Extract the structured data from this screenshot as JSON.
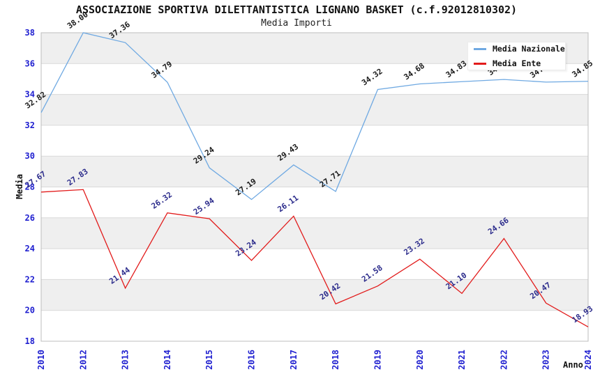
{
  "chart_data": {
    "type": "line",
    "title": "ASSOCIAZIONE SPORTIVA DILETTANTISTICA LIGNANO BASKET (c.f.92012810302)",
    "subtitle": "Media Importi",
    "xlabel": "Anno",
    "ylabel": "Media",
    "ylim": [
      18,
      38
    ],
    "ytick_step": 2,
    "grid": "horizontal-bands-alternating",
    "band_color": "#efefef",
    "gridline_color": "#d9d9d9",
    "plot_border_color": "#bdbdbd",
    "axis_tick_color": "#2020d0",
    "legend_position": "top-right",
    "categories": [
      "2010",
      "2012",
      "2013",
      "2014",
      "2015",
      "2016",
      "2017",
      "2018",
      "2019",
      "2020",
      "2021",
      "2022",
      "2023",
      "2024"
    ],
    "series": [
      {
        "name": "Media Nazionale",
        "color": "#6FA9E2",
        "label_color": "#1a1a1a",
        "values": [
          32.82,
          38.0,
          37.36,
          34.79,
          29.24,
          27.19,
          29.43,
          27.71,
          34.32,
          34.68,
          34.83,
          34.97,
          34.8,
          34.85
        ],
        "labels": [
          "32.82",
          "38.00",
          "37.36",
          "34.79",
          "29.24",
          "27.19",
          "29.43",
          "27.71",
          "34.32",
          "34.68",
          "34.83",
          "34.97",
          "34.80",
          "34.85"
        ]
      },
      {
        "name": "Media Ente",
        "color": "#E21B1B",
        "label_color": "#2B2B8B",
        "values": [
          27.67,
          27.83,
          21.44,
          26.32,
          25.94,
          23.24,
          26.11,
          20.42,
          21.58,
          23.32,
          21.1,
          24.66,
          20.47,
          18.93
        ],
        "labels": [
          "27.67",
          "27.83",
          "21.44",
          "26.32",
          "25.94",
          "23.24",
          "26.11",
          "20.42",
          "21.58",
          "23.32",
          "21.10",
          "24.66",
          "20.47",
          "18.93"
        ]
      }
    ]
  }
}
